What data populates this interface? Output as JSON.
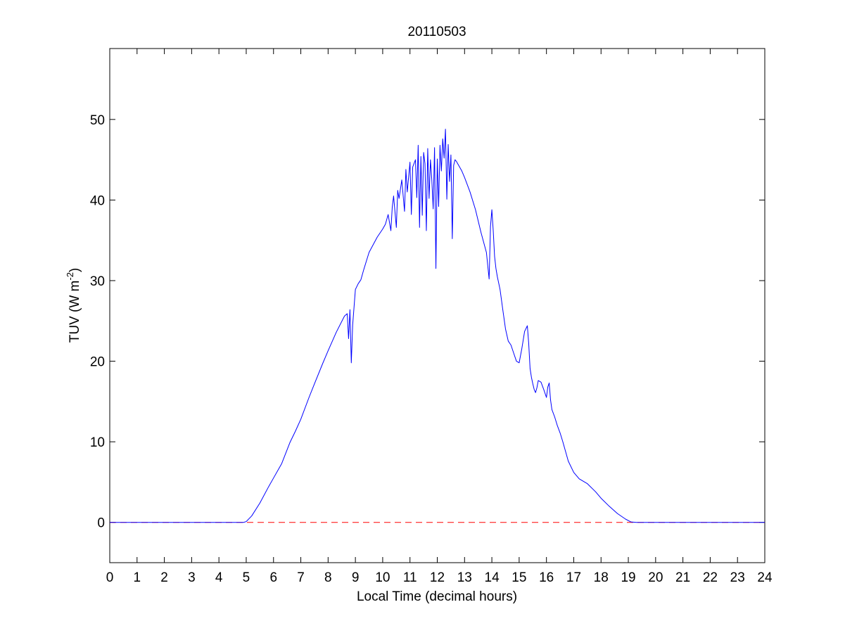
{
  "chart_data": {
    "type": "line",
    "title": "20110503",
    "xlabel": "Local Time (decimal hours)",
    "ylabel_main": "TUV (W m",
    "ylabel_superscript": "-2",
    "ylabel_close": ")",
    "xlim": [
      0,
      24
    ],
    "ylim": [
      -5,
      58.8
    ],
    "xticks": [
      0,
      1,
      2,
      3,
      4,
      5,
      6,
      7,
      8,
      9,
      10,
      11,
      12,
      13,
      14,
      15,
      16,
      17,
      18,
      19,
      20,
      21,
      22,
      23,
      24
    ],
    "yticks": [
      0,
      10,
      20,
      30,
      40,
      50
    ],
    "grid": false,
    "colors": {
      "series": "#0000ff",
      "reference": "#ff0000",
      "axes": "#000000",
      "background": "#ffffff"
    },
    "reference_line": {
      "y": 0,
      "style": "dashed",
      "color": "#ff0000"
    },
    "series": [
      {
        "color": "#0000ff",
        "x": [
          0,
          4.9,
          5.0,
          5.2,
          5.5,
          5.8,
          6.0,
          6.3,
          6.6,
          6.8,
          7.0,
          7.3,
          7.5,
          7.8,
          8.0,
          8.3,
          8.6,
          8.7,
          8.75,
          8.8,
          8.85,
          8.9,
          8.95,
          9.0,
          9.1,
          9.2,
          9.3,
          9.5,
          9.8,
          10.0,
          10.1,
          10.2,
          10.3,
          10.35,
          10.4,
          10.5,
          10.55,
          10.6,
          10.7,
          10.8,
          10.85,
          10.9,
          11.0,
          11.05,
          11.1,
          11.2,
          11.25,
          11.3,
          11.35,
          11.4,
          11.45,
          11.5,
          11.55,
          11.6,
          11.65,
          11.7,
          11.75,
          11.8,
          11.85,
          11.9,
          11.95,
          12.0,
          12.05,
          12.1,
          12.15,
          12.2,
          12.25,
          12.3,
          12.35,
          12.4,
          12.45,
          12.5,
          12.55,
          12.6,
          12.65,
          12.7,
          12.75,
          12.8,
          12.9,
          13.0,
          13.2,
          13.4,
          13.6,
          13.8,
          13.9,
          13.95,
          14.0,
          14.05,
          14.1,
          14.15,
          14.2,
          14.3,
          14.4,
          14.5,
          14.6,
          14.7,
          14.8,
          14.9,
          15.0,
          15.1,
          15.2,
          15.3,
          15.35,
          15.4,
          15.45,
          15.5,
          15.55,
          15.6,
          15.65,
          15.7,
          15.8,
          15.9,
          16.0,
          16.05,
          16.1,
          16.15,
          16.2,
          16.3,
          16.4,
          16.5,
          16.6,
          16.7,
          16.8,
          17.0,
          17.2,
          17.5,
          17.8,
          18.0,
          18.3,
          18.6,
          18.9,
          19.1,
          19.3,
          19.5,
          20.0,
          24.0
        ],
        "y": [
          0,
          0,
          0.1,
          0.8,
          2.4,
          4.3,
          5.5,
          7.3,
          9.9,
          11.3,
          12.8,
          15.5,
          17.2,
          19.7,
          21.3,
          23.6,
          25.6,
          25.9,
          22.8,
          26.4,
          19.8,
          24.5,
          26.7,
          28.9,
          29.6,
          30.1,
          31.3,
          33.5,
          35.4,
          36.4,
          37.0,
          38.2,
          36.2,
          39.1,
          40.5,
          36.6,
          41.2,
          40.2,
          42.5,
          38.6,
          43.8,
          41.0,
          44.7,
          38.2,
          44.1,
          45.0,
          40.3,
          46.8,
          36.6,
          45.4,
          38.1,
          45.9,
          44.5,
          36.2,
          46.4,
          40.2,
          45.0,
          42.5,
          38.9,
          46.5,
          31.5,
          45.1,
          39.2,
          46.8,
          43.6,
          47.6,
          45.2,
          48.8,
          40.1,
          46.9,
          42.3,
          45.6,
          35.2,
          44.3,
          45.0,
          44.8,
          44.5,
          44.2,
          43.6,
          42.8,
          41.0,
          38.8,
          36.0,
          33.5,
          30.2,
          36.7,
          38.8,
          36.2,
          33.0,
          31.5,
          30.5,
          28.9,
          26.4,
          24.0,
          22.5,
          22.0,
          21.0,
          20.0,
          19.8,
          21.6,
          23.7,
          24.4,
          22.2,
          19.1,
          18.0,
          17.2,
          16.5,
          16.1,
          16.7,
          17.6,
          17.4,
          16.5,
          15.5,
          16.8,
          17.3,
          15.2,
          14.0,
          13.1,
          12.0,
          11.1,
          10.0,
          8.8,
          7.6,
          6.2,
          5.4,
          4.8,
          3.8,
          3.0,
          2.0,
          1.1,
          0.4,
          0.05,
          0,
          0,
          0,
          0
        ]
      }
    ]
  }
}
